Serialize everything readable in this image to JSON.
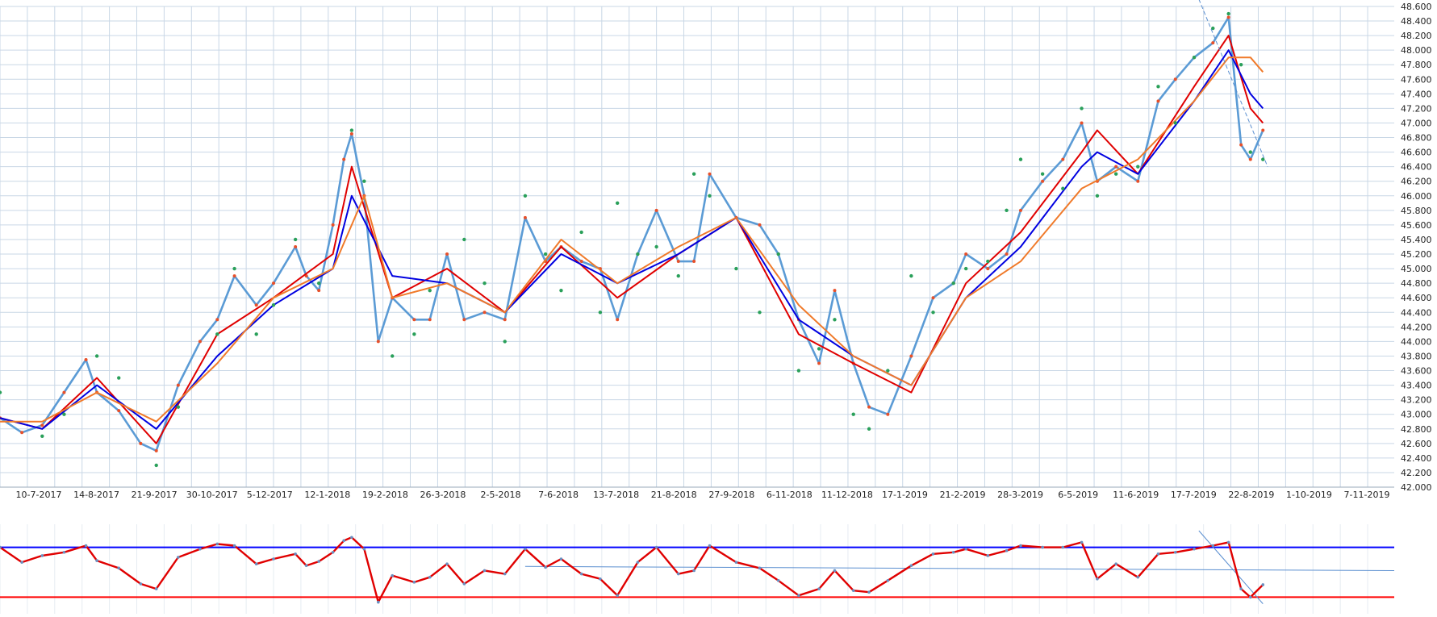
{
  "colors": {
    "background": "#ffffff",
    "grid": "#c9d7e6",
    "price": "#5b9bd5",
    "price_dots": "#e8502a",
    "ma_red": "#e00000",
    "ma_blue": "#0000e0",
    "ma_orange": "#f07a2a",
    "sar": "#2aa05a",
    "oscillator_line": "#6a8fc0",
    "upper_band": "#0000ff",
    "lower_band": "#ff0000",
    "trend_line": "#5b8fd0"
  },
  "chart_data": [
    {
      "type": "line",
      "name": "price-chart",
      "grid": true,
      "y_axis_position": "right",
      "ylim": [
        42000,
        48600
      ],
      "xlim": [
        "2017-06-13",
        "2019-11-22"
      ],
      "x_tick_labels": [
        "10-7-2017",
        "14-8-2017",
        "21-9-2017",
        "30-10-2017",
        "5-12-2017",
        "12-1-2018",
        "19-2-2018",
        "26-3-2018",
        "2-5-2018",
        "7-6-2018",
        "13-7-2018",
        "21-8-2018",
        "27-9-2018",
        "6-11-2018",
        "11-12-2018",
        "17-1-2019",
        "21-2-2019",
        "28-3-2019",
        "6-5-2019",
        "11-6-2019",
        "17-7-2019",
        "22-8-2019",
        "1-10-2019",
        "7-11-2019"
      ],
      "y_tick_labels": [
        "48.600",
        "48.400",
        "48.200",
        "48.000",
        "47.800",
        "47.600",
        "47.400",
        "47.200",
        "47.000",
        "46.800",
        "46.600",
        "46.400",
        "46.200",
        "46.000",
        "45.800",
        "45.600",
        "45.400",
        "45.200",
        "45.000",
        "44.800",
        "44.600",
        "44.400",
        "44.200",
        "44.000",
        "43.800",
        "43.600",
        "43.400",
        "43.200",
        "43.000",
        "42.800",
        "42.600",
        "42.400",
        "42.200",
        "42.000"
      ],
      "y_ticks": [
        48600,
        48400,
        48200,
        48000,
        47800,
        47600,
        47400,
        47200,
        47000,
        46800,
        46600,
        46400,
        46200,
        46000,
        45800,
        45600,
        45400,
        45200,
        45000,
        44800,
        44600,
        44400,
        44200,
        44000,
        43800,
        43600,
        43400,
        43200,
        43000,
        42800,
        42600,
        42400,
        42200,
        42000
      ],
      "series": [
        {
          "role": "price",
          "x": [
            "2017-06-13",
            "2017-06-27",
            "2017-07-10",
            "2017-07-24",
            "2017-08-07",
            "2017-08-14",
            "2017-08-28",
            "2017-09-11",
            "2017-09-21",
            "2017-10-05",
            "2017-10-19",
            "2017-10-30",
            "2017-11-10",
            "2017-11-24",
            "2017-12-05",
            "2017-12-19",
            "2017-12-26",
            "2018-01-03",
            "2018-01-12",
            "2018-01-19",
            "2018-01-24",
            "2018-02-01",
            "2018-02-10",
            "2018-02-19",
            "2018-03-05",
            "2018-03-15",
            "2018-03-26",
            "2018-04-06",
            "2018-04-19",
            "2018-05-02",
            "2018-05-15",
            "2018-05-28",
            "2018-06-07",
            "2018-06-20",
            "2018-07-02",
            "2018-07-13",
            "2018-07-26",
            "2018-08-07",
            "2018-08-21",
            "2018-08-31",
            "2018-09-10",
            "2018-09-27",
            "2018-10-12",
            "2018-10-24",
            "2018-11-06",
            "2018-11-19",
            "2018-11-29",
            "2018-12-11",
            "2018-12-21",
            "2019-01-02",
            "2019-01-17",
            "2019-01-31",
            "2019-02-13",
            "2019-02-21",
            "2019-03-07",
            "2019-03-19",
            "2019-03-28",
            "2019-04-11",
            "2019-04-24",
            "2019-05-06",
            "2019-05-16",
            "2019-05-28",
            "2019-06-11",
            "2019-06-24",
            "2019-07-05",
            "2019-07-17",
            "2019-07-29",
            "2019-08-08",
            "2019-08-16",
            "2019-08-22",
            "2019-08-30"
          ],
          "y": [
            42950,
            42750,
            42850,
            43300,
            43750,
            43300,
            43050,
            42600,
            42500,
            43400,
            44000,
            44300,
            44900,
            44500,
            44800,
            45300,
            44900,
            44700,
            45600,
            46500,
            46850,
            46000,
            44000,
            44600,
            44300,
            44300,
            45200,
            44300,
            44400,
            44300,
            45700,
            45100,
            45300,
            45100,
            45000,
            44300,
            45200,
            45800,
            45100,
            45100,
            46300,
            45700,
            45600,
            45200,
            44300,
            43700,
            44700,
            43700,
            43100,
            43000,
            43800,
            44600,
            44800,
            45200,
            45000,
            45200,
            45800,
            46200,
            46500,
            47000,
            46200,
            46400,
            46200,
            47300,
            47600,
            47900,
            48100,
            48450,
            46700,
            46500,
            46900
          ]
        },
        {
          "role": "ma_red",
          "x": [
            "2017-06-13",
            "2017-07-10",
            "2017-08-14",
            "2017-09-21",
            "2017-10-30",
            "2017-12-05",
            "2018-01-12",
            "2018-01-24",
            "2018-02-19",
            "2018-03-26",
            "2018-05-02",
            "2018-06-07",
            "2018-07-13",
            "2018-08-21",
            "2018-09-27",
            "2018-11-06",
            "2018-12-11",
            "2019-01-17",
            "2019-02-21",
            "2019-03-28",
            "2019-05-06",
            "2019-05-16",
            "2019-06-11",
            "2019-07-17",
            "2019-08-08",
            "2019-08-22",
            "2019-08-30"
          ],
          "y": [
            42950,
            42800,
            43500,
            42600,
            44100,
            44600,
            45200,
            46400,
            44600,
            45000,
            44400,
            45300,
            44600,
            45200,
            45700,
            44100,
            43700,
            43300,
            44800,
            45500,
            46600,
            46900,
            46300,
            47500,
            48200,
            47200,
            47000
          ]
        },
        {
          "role": "ma_blue",
          "x": [
            "2017-06-13",
            "2017-07-10",
            "2017-08-14",
            "2017-09-21",
            "2017-10-30",
            "2017-12-05",
            "2018-01-12",
            "2018-01-24",
            "2018-02-19",
            "2018-03-26",
            "2018-05-02",
            "2018-06-07",
            "2018-07-13",
            "2018-08-21",
            "2018-09-27",
            "2018-11-06",
            "2018-12-11",
            "2019-01-17",
            "2019-02-21",
            "2019-03-28",
            "2019-05-06",
            "2019-05-16",
            "2019-06-11",
            "2019-07-17",
            "2019-08-08",
            "2019-08-22",
            "2019-08-30"
          ],
          "y": [
            42950,
            42800,
            43400,
            42800,
            43800,
            44500,
            45000,
            46000,
            44900,
            44800,
            44400,
            45200,
            44800,
            45200,
            45700,
            44300,
            43800,
            43400,
            44600,
            45300,
            46400,
            46600,
            46300,
            47300,
            48000,
            47400,
            47200
          ]
        },
        {
          "role": "ma_orange",
          "x": [
            "2017-06-13",
            "2017-07-10",
            "2017-08-14",
            "2017-09-21",
            "2017-10-30",
            "2017-12-05",
            "2018-01-12",
            "2018-02-01",
            "2018-02-19",
            "2018-03-26",
            "2018-05-02",
            "2018-06-07",
            "2018-07-13",
            "2018-08-21",
            "2018-09-27",
            "2018-11-06",
            "2018-12-11",
            "2019-01-17",
            "2019-02-21",
            "2019-03-28",
            "2019-05-06",
            "2019-06-11",
            "2019-07-17",
            "2019-08-08",
            "2019-08-22",
            "2019-08-30"
          ],
          "y": [
            42900,
            42900,
            43300,
            42900,
            43700,
            44600,
            45000,
            46000,
            44600,
            44800,
            44400,
            45400,
            44800,
            45300,
            45700,
            44500,
            43800,
            43400,
            44600,
            45100,
            46100,
            46500,
            47300,
            47900,
            47900,
            47700
          ]
        },
        {
          "role": "sar",
          "x": [
            "2017-06-13",
            "2017-07-10",
            "2017-07-24",
            "2017-08-14",
            "2017-08-28",
            "2017-09-21",
            "2017-10-05",
            "2017-10-30",
            "2017-11-10",
            "2017-11-24",
            "2017-12-05",
            "2017-12-19",
            "2018-01-03",
            "2018-01-24",
            "2018-02-01",
            "2018-02-19",
            "2018-03-05",
            "2018-03-15",
            "2018-04-06",
            "2018-04-19",
            "2018-05-02",
            "2018-05-15",
            "2018-05-28",
            "2018-06-07",
            "2018-06-20",
            "2018-07-02",
            "2018-07-13",
            "2018-07-26",
            "2018-08-07",
            "2018-08-21",
            "2018-08-31",
            "2018-09-10",
            "2018-09-27",
            "2018-10-12",
            "2018-10-24",
            "2018-11-06",
            "2018-11-19",
            "2018-11-29",
            "2018-12-11",
            "2018-12-21",
            "2019-01-02",
            "2019-01-17",
            "2019-01-31",
            "2019-02-13",
            "2019-02-21",
            "2019-03-07",
            "2019-03-19",
            "2019-03-28",
            "2019-04-11",
            "2019-04-24",
            "2019-05-06",
            "2019-05-16",
            "2019-05-28",
            "2019-06-11",
            "2019-06-24",
            "2019-07-05",
            "2019-07-17",
            "2019-07-29",
            "2019-08-08",
            "2019-08-16",
            "2019-08-22",
            "2019-08-30"
          ],
          "y": [
            43300,
            42700,
            43000,
            43800,
            43500,
            42300,
            43100,
            44100,
            45000,
            44100,
            44500,
            45400,
            44800,
            46900,
            46200,
            43800,
            44100,
            44700,
            45400,
            44800,
            44000,
            46000,
            45200,
            44700,
            45500,
            44400,
            45900,
            45200,
            45300,
            44900,
            46300,
            46000,
            45000,
            44400,
            45200,
            43600,
            43900,
            44300,
            43000,
            42800,
            43600,
            44900,
            44400,
            44800,
            45000,
            45100,
            45800,
            46500,
            46300,
            46100,
            47200,
            46000,
            46300,
            46400,
            47500,
            47000,
            47900,
            48300,
            48500,
            47800,
            46600,
            46500
          ]
        }
      ]
    },
    {
      "type": "line",
      "name": "oscillator",
      "grid": true,
      "ylim": [
        0,
        100
      ],
      "upper_band": 80,
      "lower_band": 20,
      "series": [
        {
          "role": "oscillator",
          "x": [
            "2017-06-13",
            "2017-06-27",
            "2017-07-10",
            "2017-07-24",
            "2017-08-07",
            "2017-08-14",
            "2017-08-28",
            "2017-09-11",
            "2017-09-21",
            "2017-10-05",
            "2017-10-19",
            "2017-10-30",
            "2017-11-10",
            "2017-11-24",
            "2017-12-05",
            "2017-12-19",
            "2017-12-26",
            "2018-01-03",
            "2018-01-12",
            "2018-01-19",
            "2018-01-24",
            "2018-02-01",
            "2018-02-10",
            "2018-02-19",
            "2018-03-05",
            "2018-03-15",
            "2018-03-26",
            "2018-04-06",
            "2018-04-19",
            "2018-05-02",
            "2018-05-15",
            "2018-05-28",
            "2018-06-07",
            "2018-06-20",
            "2018-07-02",
            "2018-07-13",
            "2018-07-26",
            "2018-08-07",
            "2018-08-21",
            "2018-08-31",
            "2018-09-10",
            "2018-09-27",
            "2018-10-12",
            "2018-10-24",
            "2018-11-06",
            "2018-11-19",
            "2018-11-29",
            "2018-12-11",
            "2018-12-21",
            "2019-01-02",
            "2019-01-17",
            "2019-01-31",
            "2019-02-13",
            "2019-02-21",
            "2019-03-07",
            "2019-03-19",
            "2019-03-28",
            "2019-04-11",
            "2019-04-24",
            "2019-05-06",
            "2019-05-16",
            "2019-05-28",
            "2019-06-11",
            "2019-06-24",
            "2019-07-05",
            "2019-07-17",
            "2019-07-29",
            "2019-08-08",
            "2019-08-16",
            "2019-08-22",
            "2019-08-30"
          ],
          "y": [
            80,
            62,
            70,
            74,
            82,
            64,
            55,
            36,
            30,
            68,
            78,
            84,
            82,
            60,
            66,
            72,
            58,
            63,
            74,
            88,
            92,
            78,
            14,
            46,
            38,
            44,
            60,
            36,
            52,
            48,
            78,
            56,
            66,
            48,
            42,
            22,
            62,
            80,
            48,
            52,
            82,
            62,
            55,
            40,
            22,
            30,
            52,
            28,
            26,
            40,
            58,
            72,
            74,
            78,
            70,
            76,
            82,
            80,
            80,
            86,
            42,
            60,
            44,
            72,
            74,
            78,
            82,
            86,
            30,
            20,
            35
          ]
        }
      ]
    },
    {
      "type": "line",
      "name": "trend-lines",
      "series": [
        {
          "role": "price_downtrend",
          "x": [
            "2019-07-20",
            "2019-09-02"
          ],
          "y": [
            48700,
            46400
          ]
        },
        {
          "role": "osc_trend_main",
          "x": [
            "2018-05-15",
            "2019-11-22"
          ],
          "y": [
            57,
            52
          ]
        },
        {
          "role": "osc_trend_steep",
          "x": [
            "2019-07-20",
            "2019-08-30"
          ],
          "y": [
            100,
            12
          ]
        }
      ]
    }
  ]
}
